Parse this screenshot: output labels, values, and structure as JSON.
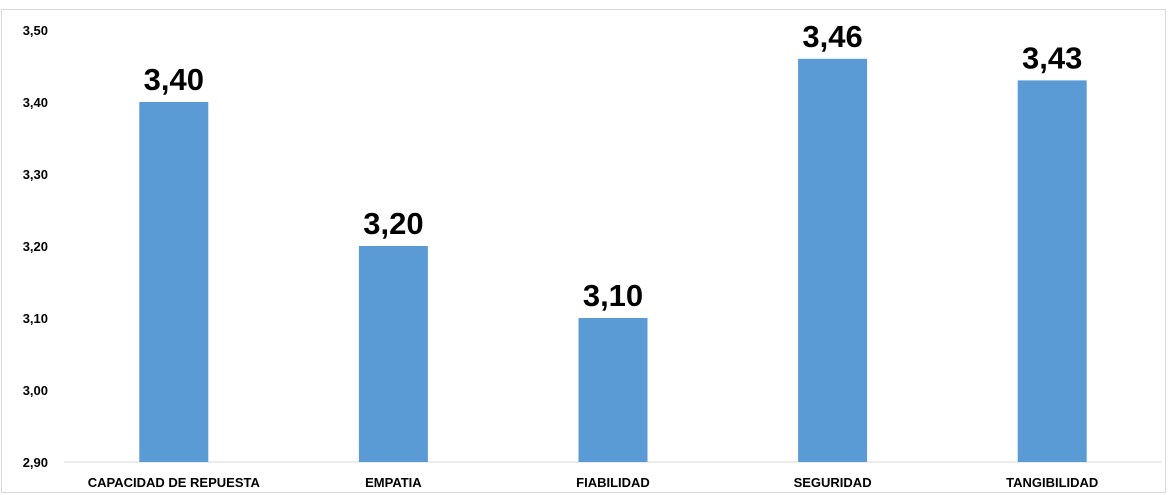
{
  "chart_data": {
    "type": "bar",
    "categories": [
      "CAPACIDAD DE REPUESTA",
      "EMPATIA",
      "FIABILIDAD",
      "SEGURIDAD",
      "TANGIBILIDAD"
    ],
    "values": [
      3.4,
      3.2,
      3.1,
      3.46,
      3.43
    ],
    "data_labels": [
      "3,40",
      "3,20",
      "3,10",
      "3,46",
      "3,43"
    ],
    "y_ticks": [
      "2,90",
      "3,00",
      "3,10",
      "3,20",
      "3,30",
      "3,40",
      "3,50"
    ],
    "ylim": [
      2.9,
      3.5
    ],
    "title": "",
    "xlabel": "",
    "ylabel": "",
    "grid": false,
    "legend": "none",
    "bar_color": "#5b9bd5",
    "axis_color": "#d9d9d9"
  }
}
